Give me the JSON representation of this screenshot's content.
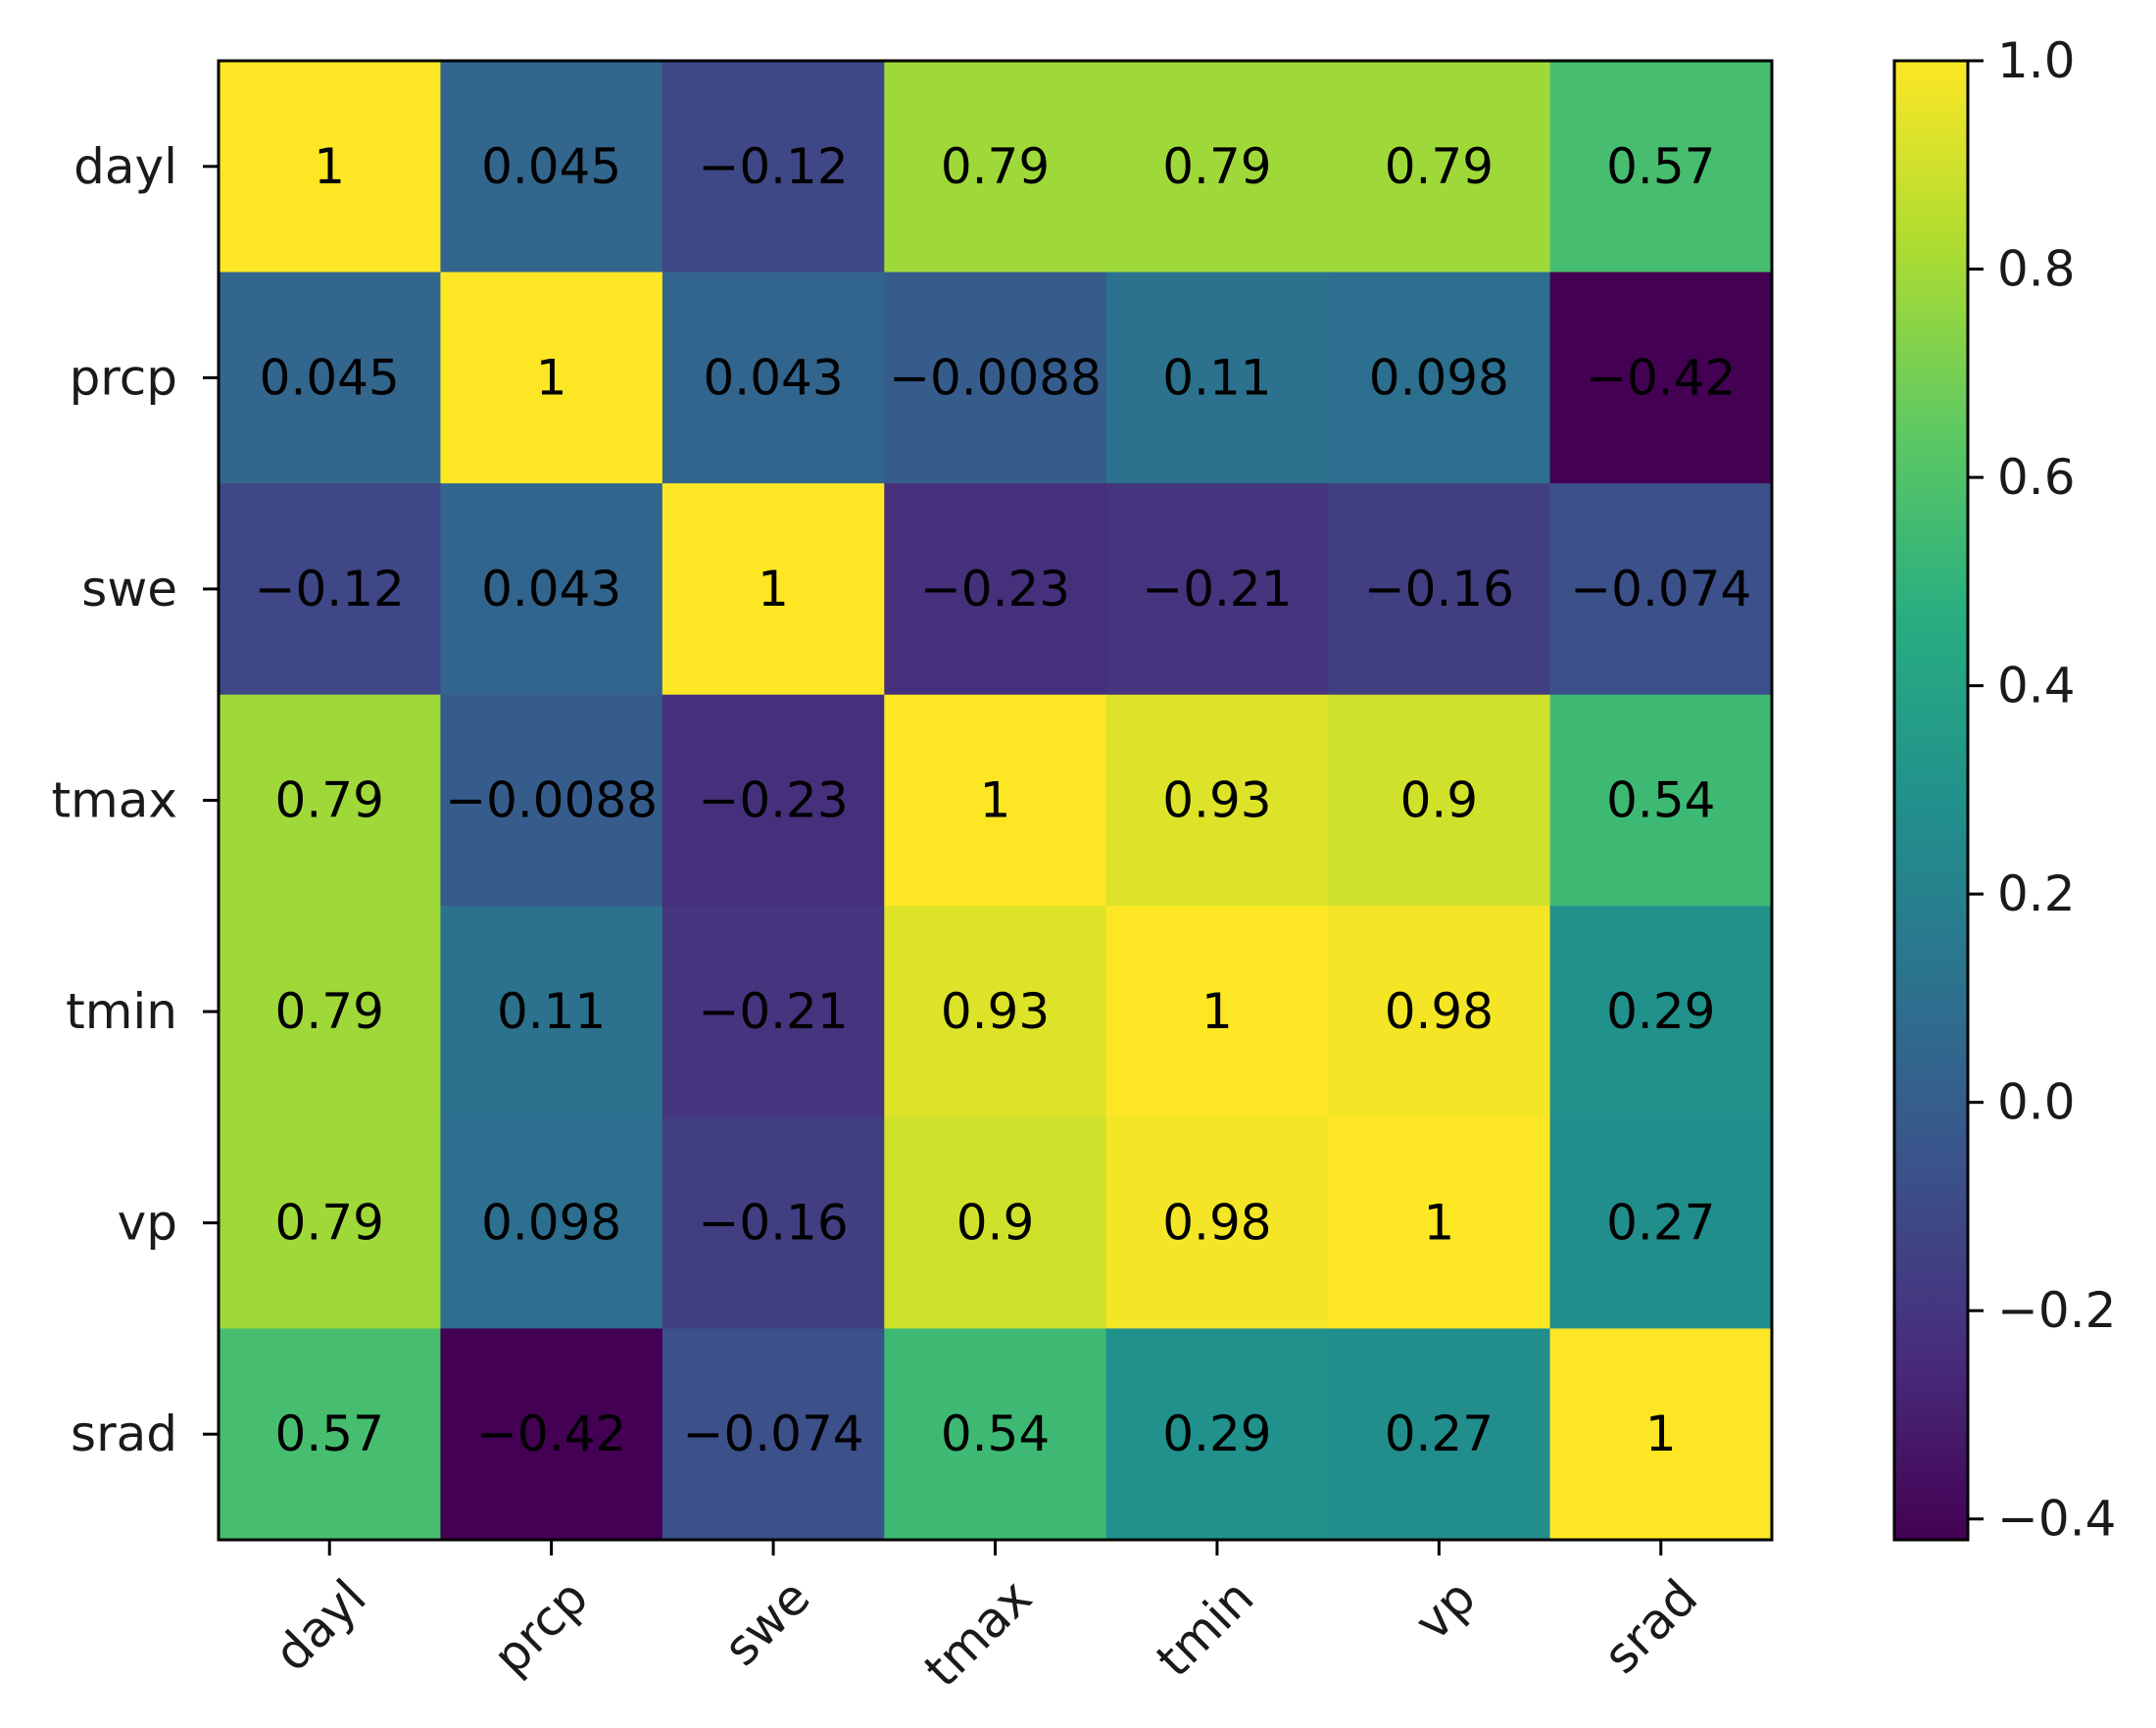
{
  "chart_data": {
    "type": "heatmap",
    "title": "",
    "xlabel": "",
    "ylabel": "",
    "colormap": "viridis",
    "x_categories": [
      "dayl",
      "prcp",
      "swe",
      "tmax",
      "tmin",
      "vp",
      "srad"
    ],
    "y_categories": [
      "dayl",
      "prcp",
      "swe",
      "tmax",
      "tmin",
      "vp",
      "srad"
    ],
    "values": [
      [
        1,
        0.045,
        -0.12,
        0.79,
        0.79,
        0.79,
        0.57
      ],
      [
        0.045,
        1,
        0.043,
        -0.0088,
        0.11,
        0.098,
        -0.42
      ],
      [
        -0.12,
        0.043,
        1,
        -0.23,
        -0.21,
        -0.16,
        -0.074
      ],
      [
        0.79,
        -0.0088,
        -0.23,
        1,
        0.93,
        0.9,
        0.54
      ],
      [
        0.79,
        0.11,
        -0.21,
        0.93,
        1,
        0.98,
        0.29
      ],
      [
        0.79,
        0.098,
        -0.16,
        0.9,
        0.98,
        1,
        0.27
      ],
      [
        0.57,
        -0.42,
        -0.074,
        0.54,
        0.29,
        0.27,
        1
      ]
    ],
    "cell_labels": [
      [
        "1",
        "0.045",
        "−0.12",
        "0.79",
        "0.79",
        "0.79",
        "0.57"
      ],
      [
        "0.045",
        "1",
        "0.043",
        "−0.0088",
        "0.11",
        "0.098",
        "−0.42"
      ],
      [
        "−0.12",
        "0.043",
        "1",
        "−0.23",
        "−0.21",
        "−0.16",
        "−0.074"
      ],
      [
        "0.79",
        "−0.0088",
        "−0.23",
        "1",
        "0.93",
        "0.9",
        "0.54"
      ],
      [
        "0.79",
        "0.11",
        "−0.21",
        "0.93",
        "1",
        "0.98",
        "0.29"
      ],
      [
        "0.79",
        "0.098",
        "−0.16",
        "0.9",
        "0.98",
        "1",
        "0.27"
      ],
      [
        "0.57",
        "−0.42",
        "−0.074",
        "0.54",
        "0.29",
        "0.27",
        "1"
      ]
    ],
    "colorbar": {
      "range": [
        -0.42,
        1.0
      ],
      "ticks": [
        1.0,
        0.8,
        0.6,
        0.4,
        0.2,
        0.0,
        -0.2,
        -0.4
      ],
      "tick_labels": [
        "1.0",
        "0.8",
        "0.6",
        "0.4",
        "0.2",
        "0.0",
        "−0.2",
        "−0.4"
      ]
    }
  }
}
